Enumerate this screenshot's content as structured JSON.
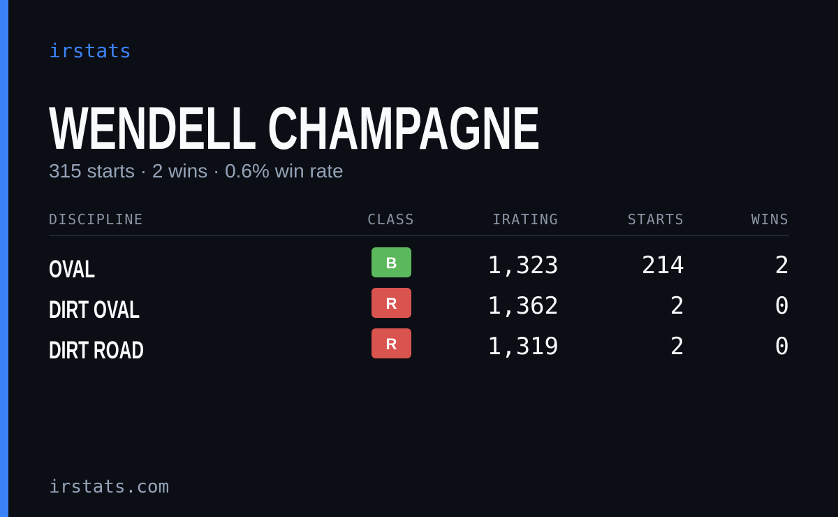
{
  "brand": "irstats",
  "title": "WENDELL CHAMPAGNE",
  "subtitle": "315 starts · 2 wins · 0.6% win rate",
  "table": {
    "headers": [
      "DISCIPLINE",
      "CLASS",
      "IRATING",
      "STARTS",
      "WINS"
    ],
    "rows": [
      {
        "discipline": "OVAL",
        "class": "B",
        "badge_color": "#5cb85c",
        "irating": "1,323",
        "starts": "214",
        "wins": "2"
      },
      {
        "discipline": "DIRT OVAL",
        "class": "R",
        "badge_color": "#d9534f",
        "irating": "1,362",
        "starts": "2",
        "wins": "0"
      },
      {
        "discipline": "DIRT ROAD",
        "class": "R",
        "badge_color": "#d9534f",
        "irating": "1,319",
        "starts": "2",
        "wins": "0"
      }
    ]
  },
  "footer": "irstats.com"
}
